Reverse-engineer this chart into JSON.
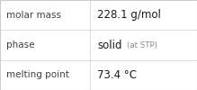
{
  "rows": [
    {
      "label": "molar mass",
      "value": "228.1 g/mol",
      "suffix": null
    },
    {
      "label": "phase",
      "value": "solid",
      "suffix": "(at STP)"
    },
    {
      "label": "melting point",
      "value": "73.4 °C",
      "suffix": null
    }
  ],
  "background_color": "#f8f8f8",
  "cell_bg": "#ffffff",
  "border_color": "#cccccc",
  "label_color": "#404040",
  "value_color": "#1a1a1a",
  "suffix_color": "#888888",
  "label_fontsize": 7.5,
  "value_fontsize": 8.5,
  "suffix_fontsize": 6.2,
  "col_split": 0.455,
  "font_family": "DejaVu Sans"
}
